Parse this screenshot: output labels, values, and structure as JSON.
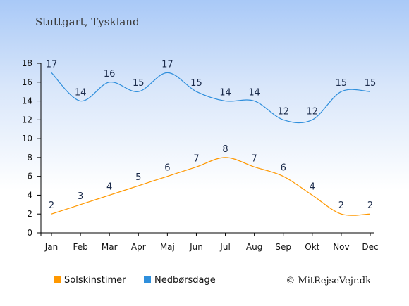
{
  "chart_data": {
    "type": "line",
    "title": "Stuttgart, Tyskland",
    "categories": [
      "Jan",
      "Feb",
      "Mar",
      "Apr",
      "Maj",
      "Jun",
      "Jul",
      "Aug",
      "Sep",
      "Okt",
      "Nov",
      "Dec"
    ],
    "ylim": [
      0,
      18
    ],
    "yticks": [
      0,
      2,
      4,
      6,
      8,
      10,
      12,
      14,
      16,
      18
    ],
    "series": [
      {
        "name": "Solskinstimer",
        "color": "#ff9800",
        "values": [
          2,
          3,
          4,
          5,
          6,
          7,
          8,
          7,
          6,
          4,
          2,
          2
        ]
      },
      {
        "name": "Nedbørsdage",
        "color": "#2f8fdc",
        "values": [
          17,
          14,
          16,
          15,
          17,
          15,
          14,
          14,
          12,
          12,
          15,
          15
        ]
      }
    ],
    "legend_position": "bottom-left",
    "grid": false
  },
  "copyright": "© MitRejseVejr.dk"
}
